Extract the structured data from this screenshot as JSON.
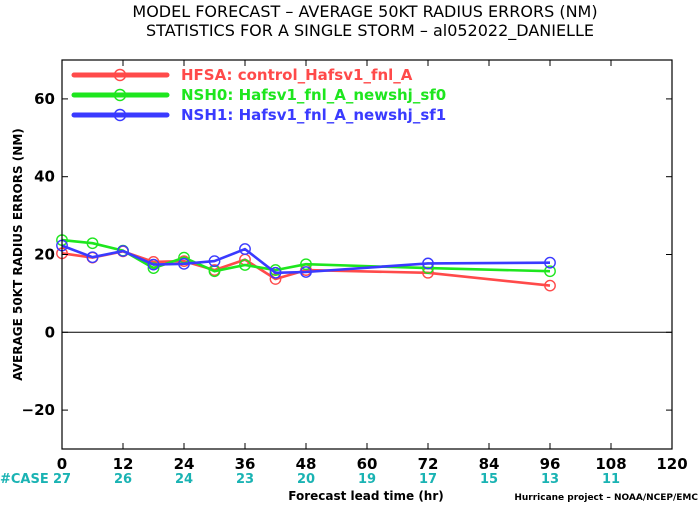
{
  "chart_data": {
    "type": "line",
    "title": "MODEL FORECAST – AVERAGE 50KT RADIUS ERRORS (NM)",
    "subtitle": "STATISTICS FOR A SINGLE STORM – al052022_DANIELLE",
    "xlabel": "Forecast lead time (hr)",
    "ylabel": "AVERAGE 50KT RADIUS ERRORS (NM)",
    "xlim": [
      0,
      120
    ],
    "ylim": [
      -30,
      70
    ],
    "x_ticks": [
      0,
      12,
      24,
      36,
      48,
      60,
      72,
      84,
      96,
      108,
      120
    ],
    "x_tick_labels": [
      "0",
      "12",
      "24",
      "36",
      "48",
      "60",
      "72",
      "84",
      "96",
      "108",
      "120"
    ],
    "y_ticks": [
      -20,
      0,
      20,
      40,
      60
    ],
    "y_tick_labels": [
      "−20",
      "0",
      "20",
      "40",
      "60"
    ],
    "zero_line": true,
    "legend_position": "top-left",
    "case_label": "#CASE",
    "case_counts": [
      {
        "x": 0,
        "label": "27"
      },
      {
        "x": 12,
        "label": "26"
      },
      {
        "x": 24,
        "label": "24"
      },
      {
        "x": 36,
        "label": "23"
      },
      {
        "x": 48,
        "label": "20"
      },
      {
        "x": 60,
        "label": "19"
      },
      {
        "x": 72,
        "label": "17"
      },
      {
        "x": 84,
        "label": "15"
      },
      {
        "x": 96,
        "label": "13"
      },
      {
        "x": 108,
        "label": "11"
      }
    ],
    "credit": "Hurricane project – NOAA/NCEP/EMC",
    "series": [
      {
        "name": "HFSA: control_Hafsv1_fnl_A",
        "color": "#ff4a4a",
        "points": [
          [
            0,
            20.3
          ],
          [
            6,
            19.2
          ],
          [
            12,
            20.8
          ],
          [
            18,
            18.1
          ],
          [
            24,
            18.3
          ],
          [
            30,
            16.0
          ],
          [
            36,
            18.7
          ],
          [
            42,
            13.7
          ],
          [
            48,
            16.0
          ],
          [
            72,
            15.3
          ],
          [
            96,
            12.0
          ]
        ]
      },
      {
        "name": "NSH0: Hafsv1_fnl_A_newshj_sf0",
        "color": "#1ee61e",
        "points": [
          [
            0,
            23.7
          ],
          [
            6,
            22.9
          ],
          [
            12,
            21.0
          ],
          [
            18,
            16.5
          ],
          [
            24,
            19.2
          ],
          [
            30,
            15.7
          ],
          [
            36,
            17.3
          ],
          [
            42,
            16.0
          ],
          [
            48,
            17.5
          ],
          [
            72,
            16.5
          ],
          [
            96,
            15.7
          ]
        ]
      },
      {
        "name": "NSH1: Hafsv1_fnl_A_newshj_sf1",
        "color": "#3a3aff",
        "points": [
          [
            0,
            22.3
          ],
          [
            6,
            19.3
          ],
          [
            12,
            20.9
          ],
          [
            18,
            17.4
          ],
          [
            24,
            17.6
          ],
          [
            30,
            18.3
          ],
          [
            36,
            21.4
          ],
          [
            42,
            15.3
          ],
          [
            48,
            15.5
          ],
          [
            72,
            17.7
          ],
          [
            96,
            17.9
          ]
        ]
      }
    ]
  }
}
